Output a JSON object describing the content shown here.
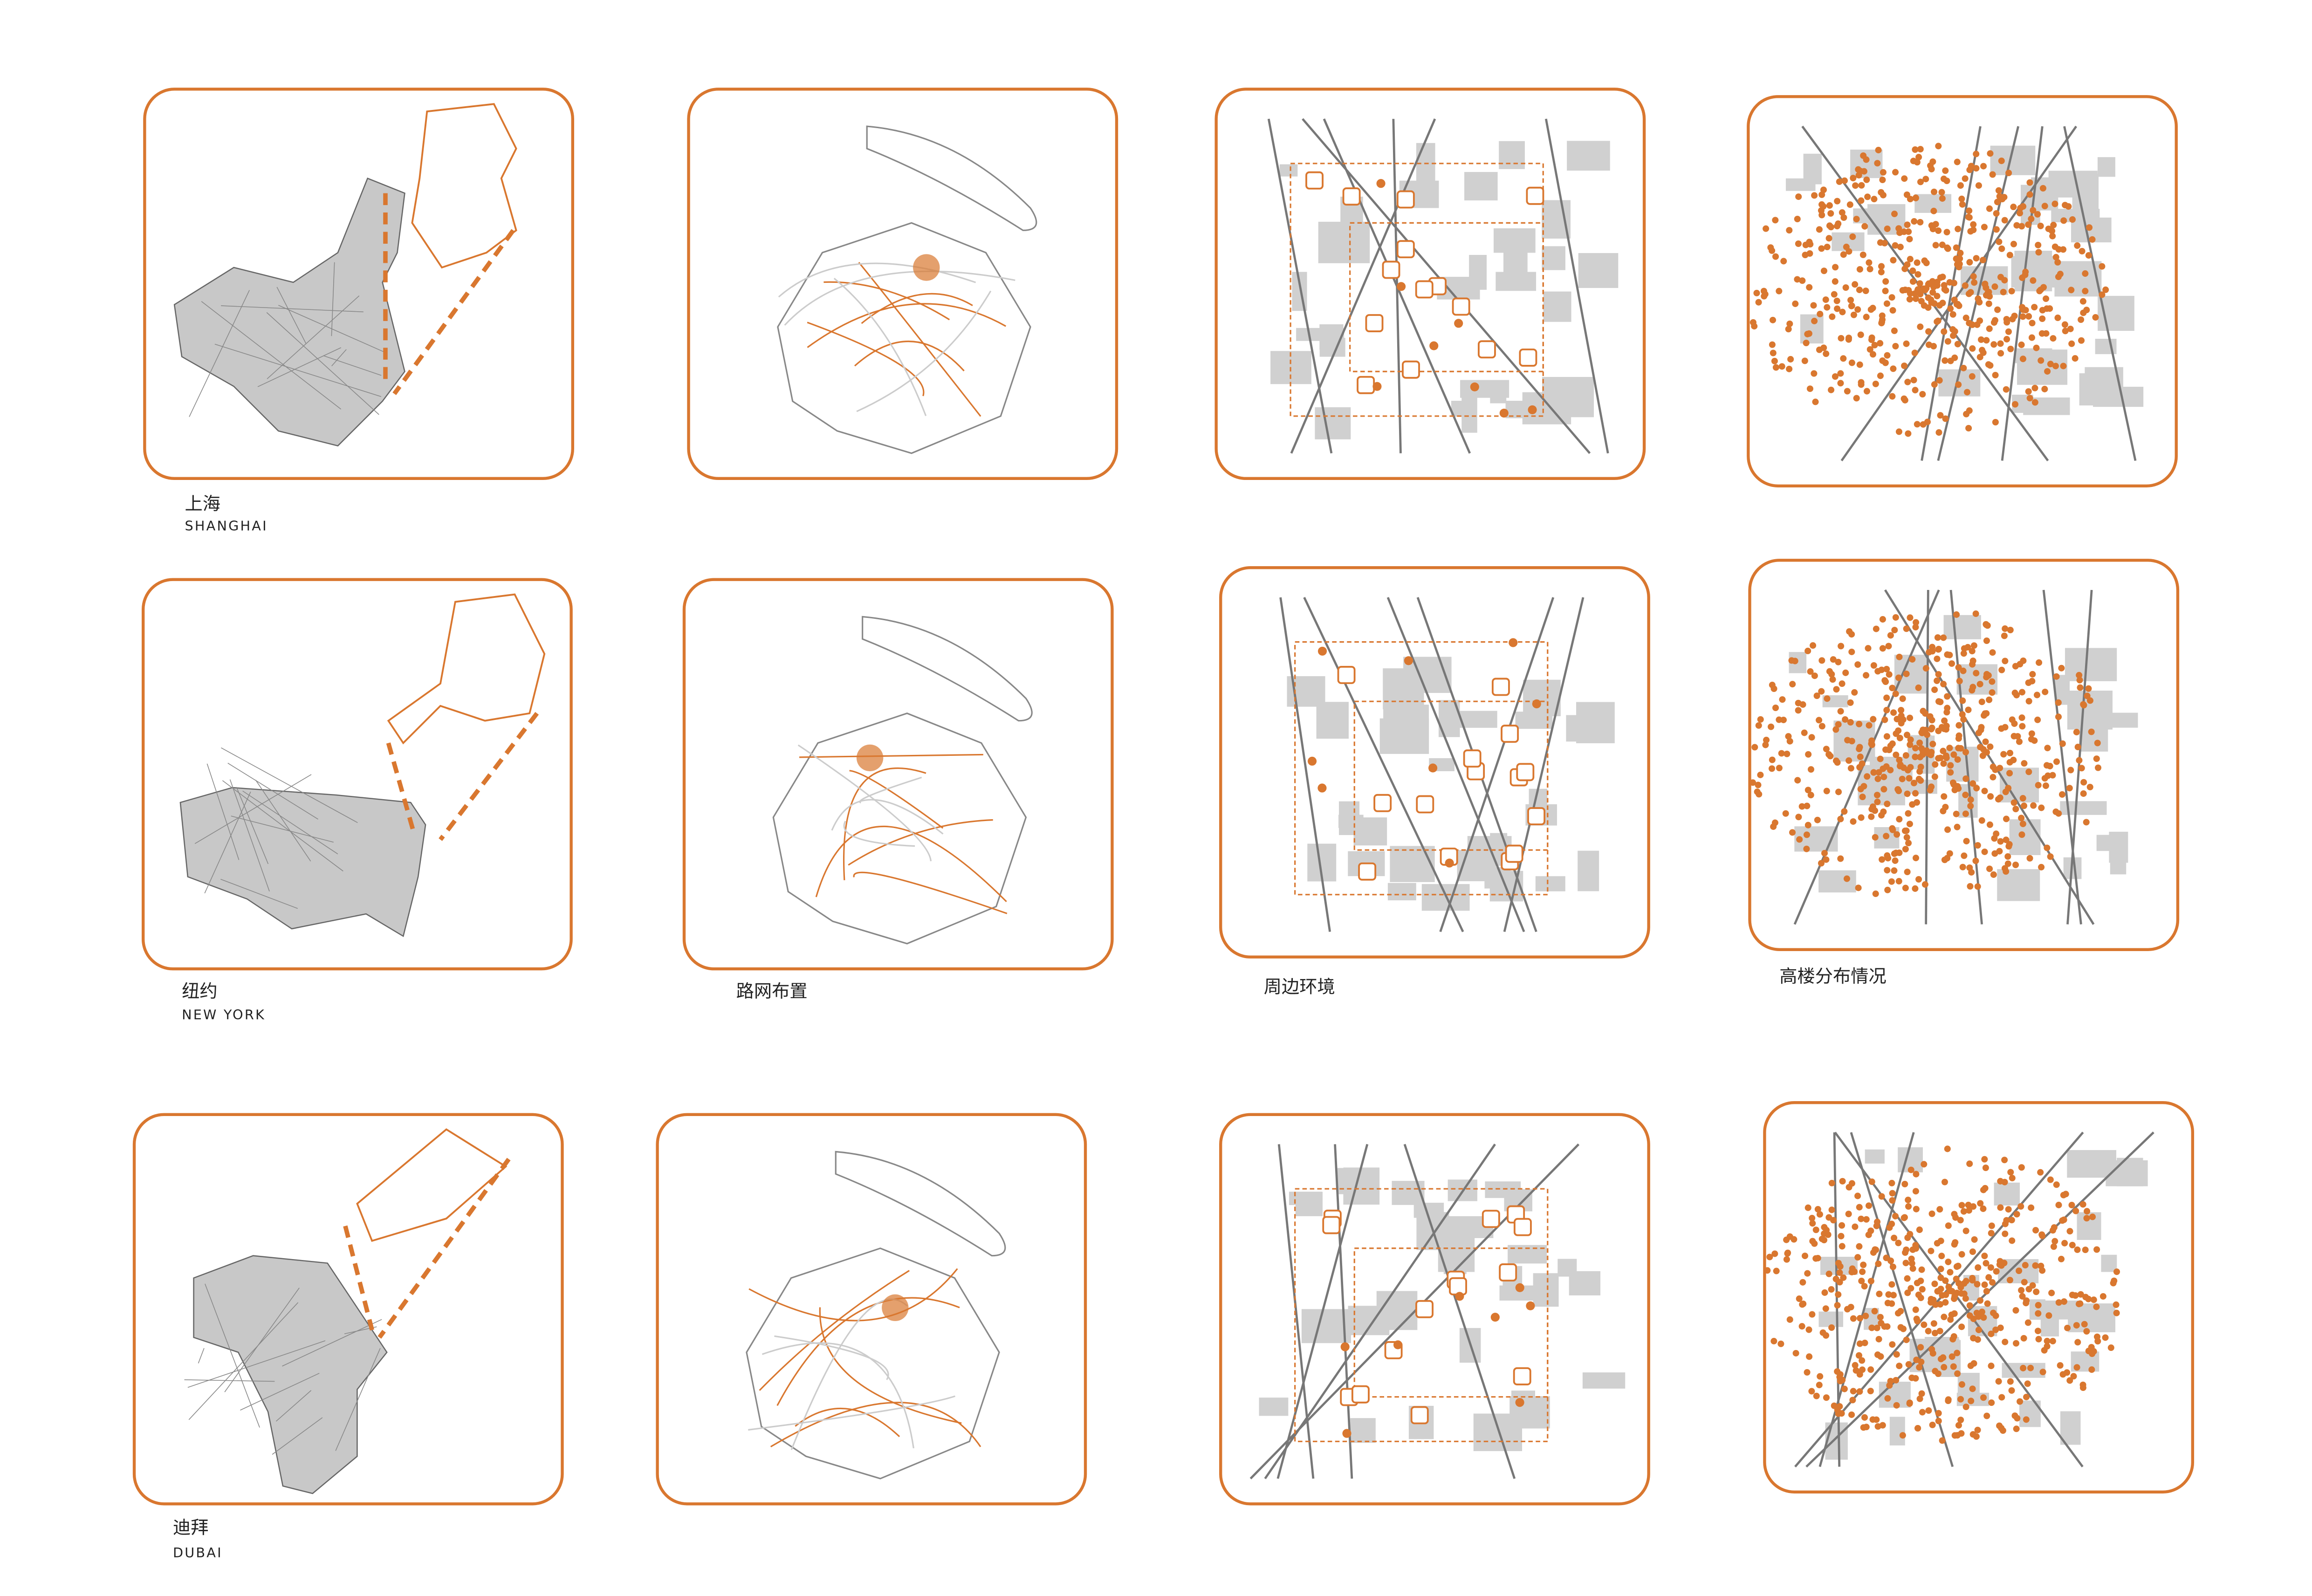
{
  "rows": [
    {
      "name_cn": "上海",
      "name_en": "SHANGHAI"
    },
    {
      "name_cn": "纽约",
      "name_en": "NEW YORK"
    },
    {
      "name_cn": "迪拜",
      "name_en": "DUBAI"
    }
  ],
  "column_labels": [
    "路网布置",
    "周边环境",
    "高楼分布情况"
  ]
}
